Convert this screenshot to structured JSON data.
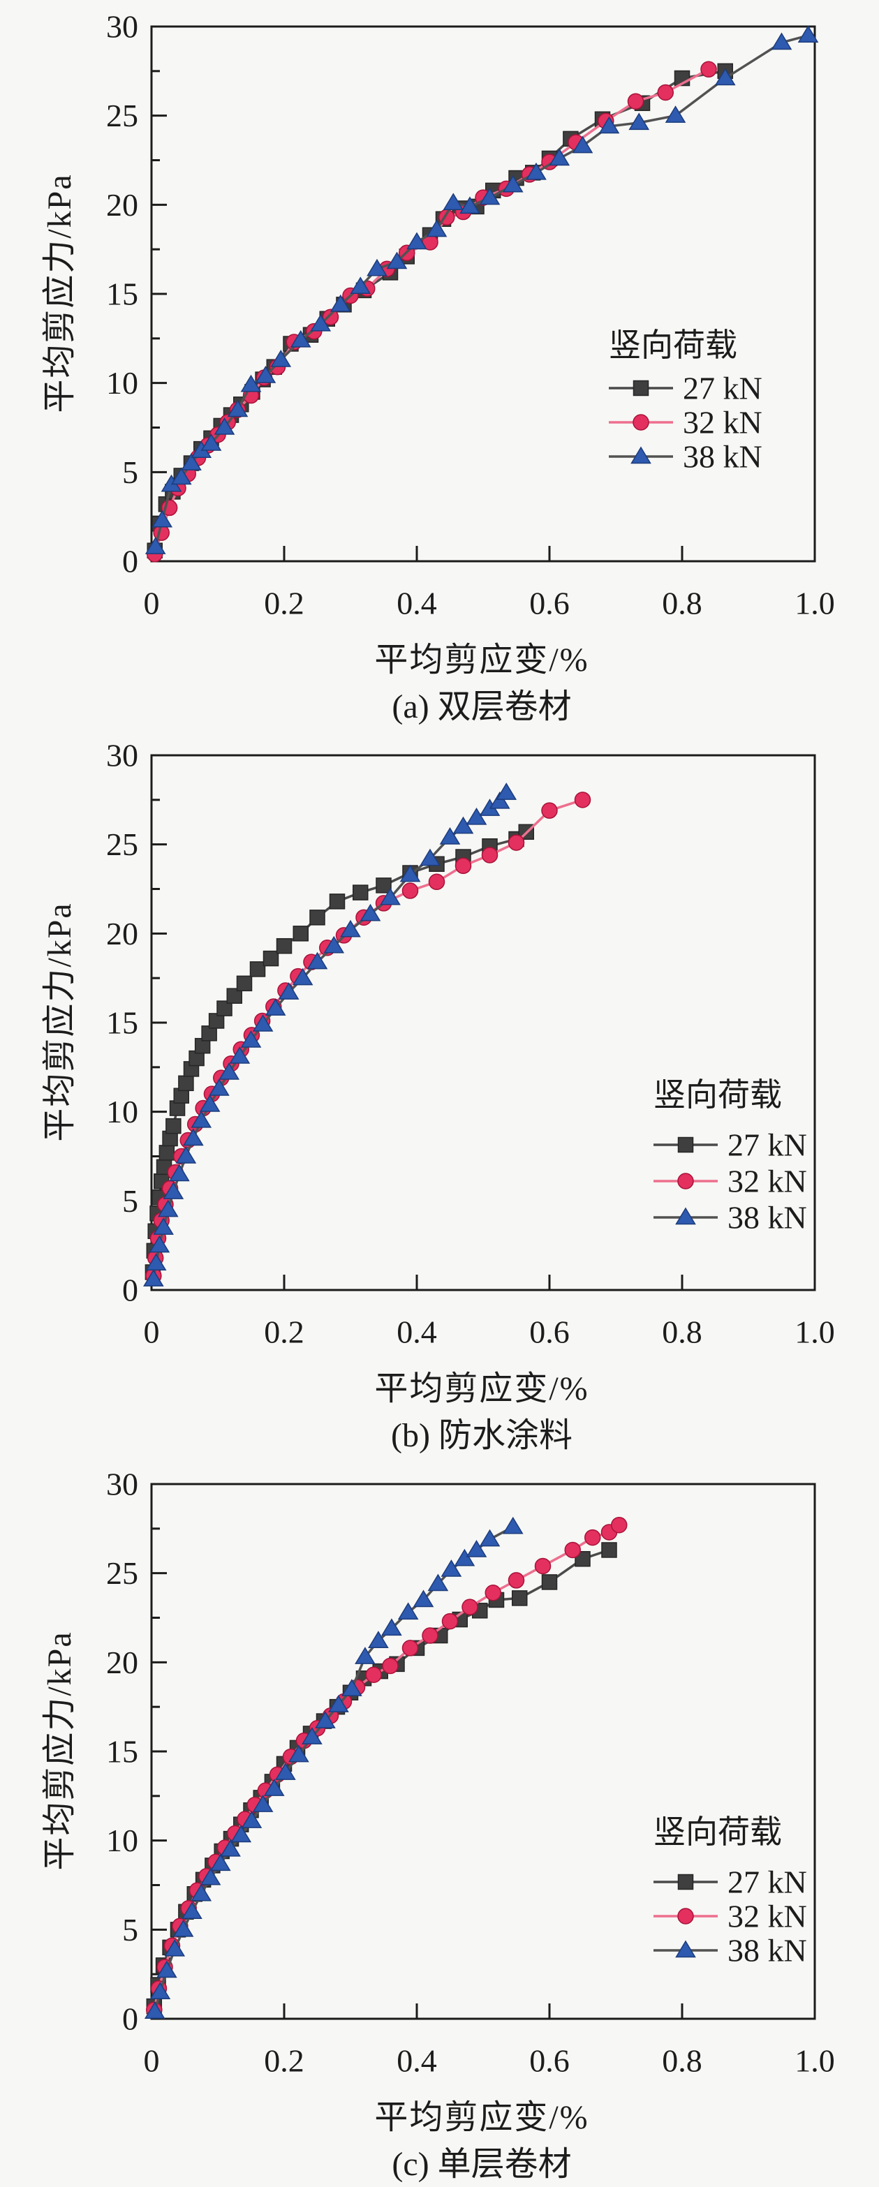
{
  "page": {
    "background": "#f7f7f5",
    "axis_color": "#1c1c1c",
    "text_color": "#1c1c1c"
  },
  "chart_data": [
    {
      "id": "a",
      "type": "line",
      "caption": "(a) 双层卷材",
      "xlabel": "平均剪应变/%",
      "ylabel": "平均剪应力/kPa",
      "legend_title": "竖向荷载",
      "legend_position": "inside-right",
      "grid": "off",
      "xlim": [
        0,
        1.0
      ],
      "ylim": [
        0,
        30
      ],
      "x_tick_labels": [
        "0",
        "0.2",
        "0.4",
        "0.6",
        "0.8",
        "1.0"
      ],
      "y_tick_labels": [
        "0",
        "5",
        "10",
        "15",
        "20",
        "25",
        "30"
      ],
      "series": [
        {
          "name": "27 kN",
          "marker": "square",
          "line_color": "#4a4a4a",
          "marker_color": "#3f3f3f",
          "marker_edge": "#262626",
          "x": [
            0.005,
            0.012,
            0.022,
            0.032,
            0.045,
            0.06,
            0.075,
            0.09,
            0.105,
            0.12,
            0.135,
            0.152,
            0.168,
            0.185,
            0.21,
            0.24,
            0.265,
            0.29,
            0.32,
            0.36,
            0.385,
            0.42,
            0.44,
            0.465,
            0.49,
            0.515,
            0.55,
            0.575,
            0.6,
            0.632,
            0.68,
            0.74,
            0.8,
            0.865
          ],
          "y": [
            0.6,
            2.1,
            3.2,
            3.9,
            4.8,
            5.5,
            6.3,
            6.9,
            7.6,
            8.2,
            8.8,
            9.5,
            10.2,
            10.9,
            12.2,
            12.7,
            13.6,
            14.4,
            15.2,
            16.2,
            17.1,
            18.3,
            19.2,
            19.8,
            19.9,
            20.8,
            21.5,
            21.8,
            22.6,
            23.7,
            24.8,
            25.7,
            27.1,
            27.5
          ]
        },
        {
          "name": "32 kN",
          "marker": "circle",
          "line_color": "#ed6f8e",
          "marker_color": "#e4305f",
          "marker_edge": "#a81238",
          "x": [
            0.005,
            0.015,
            0.027,
            0.04,
            0.055,
            0.07,
            0.085,
            0.1,
            0.115,
            0.13,
            0.15,
            0.17,
            0.19,
            0.215,
            0.245,
            0.27,
            0.3,
            0.325,
            0.355,
            0.385,
            0.42,
            0.445,
            0.47,
            0.5,
            0.535,
            0.57,
            0.6,
            0.64,
            0.685,
            0.73,
            0.775,
            0.84
          ],
          "y": [
            0.4,
            1.6,
            3.0,
            4.1,
            4.9,
            5.8,
            6.5,
            7.1,
            7.8,
            8.5,
            9.3,
            10.3,
            10.9,
            12.3,
            12.9,
            13.7,
            14.9,
            15.3,
            16.4,
            17.3,
            17.9,
            19.3,
            19.6,
            20.4,
            20.9,
            21.7,
            22.4,
            23.5,
            24.7,
            25.8,
            26.3,
            27.6
          ]
        },
        {
          "name": "38 kN",
          "marker": "triangle",
          "line_color": "#525252",
          "marker_color": "#2e5ab0",
          "marker_edge": "#1c3c7c",
          "x": [
            0.006,
            0.016,
            0.03,
            0.045,
            0.06,
            0.075,
            0.09,
            0.11,
            0.13,
            0.15,
            0.172,
            0.195,
            0.225,
            0.255,
            0.285,
            0.315,
            0.34,
            0.37,
            0.4,
            0.43,
            0.455,
            0.48,
            0.51,
            0.545,
            0.58,
            0.615,
            0.65,
            0.69,
            0.735,
            0.79,
            0.865,
            0.95,
            0.99
          ],
          "y": [
            0.8,
            2.3,
            4.3,
            4.7,
            5.5,
            6.2,
            6.6,
            7.5,
            8.5,
            9.9,
            10.4,
            11.3,
            12.4,
            13.3,
            14.4,
            15.4,
            16.4,
            16.8,
            17.9,
            18.6,
            20.1,
            19.9,
            20.4,
            21.1,
            21.8,
            22.6,
            23.3,
            24.4,
            24.6,
            25.0,
            27.1,
            29.1,
            29.5
          ]
        }
      ]
    },
    {
      "id": "b",
      "type": "line",
      "caption": "(b) 防水涂料",
      "xlabel": "平均剪应变/%",
      "ylabel": "平均剪应力/kPa",
      "legend_title": "竖向荷载",
      "legend_position": "inside-right",
      "grid": "off",
      "xlim": [
        0,
        1.0
      ],
      "ylim": [
        0,
        30
      ],
      "x_tick_labels": [
        "0",
        "0.2",
        "0.4",
        "0.6",
        "0.8",
        "1.0"
      ],
      "y_tick_labels": [
        "0",
        "5",
        "10",
        "15",
        "20",
        "25",
        "30"
      ],
      "series": [
        {
          "name": "27 kN",
          "marker": "square",
          "line_color": "#4a4a4a",
          "marker_color": "#3f3f3f",
          "marker_edge": "#262626",
          "x": [
            0.002,
            0.004,
            0.006,
            0.009,
            0.012,
            0.015,
            0.019,
            0.023,
            0.028,
            0.033,
            0.039,
            0.045,
            0.052,
            0.06,
            0.068,
            0.077,
            0.087,
            0.098,
            0.11,
            0.125,
            0.14,
            0.16,
            0.18,
            0.2,
            0.225,
            0.25,
            0.28,
            0.315,
            0.35,
            0.39,
            0.43,
            0.47,
            0.51,
            0.55,
            0.565
          ],
          "y": [
            1.0,
            2.2,
            3.3,
            4.3,
            5.2,
            6.1,
            6.9,
            7.7,
            8.5,
            9.2,
            10.2,
            10.9,
            11.6,
            12.4,
            13.0,
            13.7,
            14.4,
            15.1,
            15.8,
            16.5,
            17.2,
            18.0,
            18.6,
            19.3,
            20.0,
            20.9,
            21.8,
            22.3,
            22.7,
            23.4,
            23.9,
            24.3,
            24.9,
            25.3,
            25.7
          ]
        },
        {
          "name": "32 kN",
          "marker": "circle",
          "line_color": "#ed6f8e",
          "marker_color": "#e4305f",
          "marker_edge": "#a81238",
          "x": [
            0.003,
            0.006,
            0.01,
            0.015,
            0.021,
            0.028,
            0.036,
            0.045,
            0.055,
            0.066,
            0.078,
            0.091,
            0.105,
            0.12,
            0.135,
            0.151,
            0.167,
            0.184,
            0.202,
            0.221,
            0.241,
            0.265,
            0.29,
            0.32,
            0.35,
            0.39,
            0.43,
            0.47,
            0.51,
            0.55,
            0.6,
            0.65
          ],
          "y": [
            0.8,
            1.8,
            2.9,
            3.9,
            4.8,
            5.7,
            6.6,
            7.5,
            8.4,
            9.3,
            10.2,
            11.0,
            11.9,
            12.7,
            13.5,
            14.3,
            15.1,
            15.9,
            16.8,
            17.6,
            18.4,
            19.2,
            19.9,
            20.9,
            21.7,
            22.4,
            22.9,
            23.8,
            24.4,
            25.1,
            26.9,
            27.5
          ]
        },
        {
          "name": "38 kN",
          "marker": "triangle",
          "line_color": "#525252",
          "marker_color": "#2e5ab0",
          "marker_edge": "#1c3c7c",
          "x": [
            0.003,
            0.007,
            0.012,
            0.018,
            0.025,
            0.033,
            0.042,
            0.052,
            0.063,
            0.075,
            0.088,
            0.102,
            0.117,
            0.133,
            0.15,
            0.168,
            0.187,
            0.207,
            0.228,
            0.25,
            0.275,
            0.3,
            0.33,
            0.36,
            0.39,
            0.42,
            0.45,
            0.47,
            0.49,
            0.51,
            0.525,
            0.535
          ],
          "y": [
            0.6,
            1.5,
            2.5,
            3.5,
            4.5,
            5.5,
            6.5,
            7.5,
            8.5,
            9.5,
            10.4,
            11.3,
            12.2,
            13.1,
            14.0,
            14.9,
            15.8,
            16.7,
            17.5,
            18.4,
            19.3,
            20.2,
            21.1,
            22.0,
            23.3,
            24.2,
            25.4,
            26.0,
            26.5,
            27.0,
            27.4,
            27.9
          ]
        }
      ]
    },
    {
      "id": "c",
      "type": "line",
      "caption": "(c) 单层卷材",
      "xlabel": "平均剪应变/%",
      "ylabel": "平均剪应力/kPa",
      "legend_title": "竖向荷载",
      "legend_position": "inside-right",
      "grid": "off",
      "xlim": [
        0,
        1.0
      ],
      "ylim": [
        0,
        30
      ],
      "x_tick_labels": [
        "0",
        "0.2",
        "0.4",
        "0.6",
        "0.8",
        "1.0"
      ],
      "y_tick_labels": [
        "0",
        "5",
        "10",
        "15",
        "20",
        "25",
        "30"
      ],
      "series": [
        {
          "name": "27 kN",
          "marker": "square",
          "line_color": "#4a4a4a",
          "marker_color": "#3f3f3f",
          "marker_edge": "#262626",
          "x": [
            0.004,
            0.01,
            0.018,
            0.028,
            0.04,
            0.052,
            0.065,
            0.078,
            0.092,
            0.106,
            0.12,
            0.135,
            0.15,
            0.165,
            0.182,
            0.2,
            0.22,
            0.24,
            0.26,
            0.28,
            0.3,
            0.32,
            0.345,
            0.37,
            0.4,
            0.435,
            0.465,
            0.495,
            0.52,
            0.555,
            0.6,
            0.65,
            0.69
          ],
          "y": [
            0.7,
            1.9,
            3.0,
            4.0,
            5.0,
            6.0,
            7.0,
            7.8,
            8.6,
            9.4,
            10.1,
            10.9,
            11.7,
            12.4,
            13.3,
            14.3,
            15.2,
            16.0,
            16.7,
            17.5,
            18.3,
            19.1,
            19.5,
            19.9,
            20.8,
            21.5,
            22.4,
            22.9,
            23.5,
            23.6,
            24.5,
            25.8,
            26.3
          ]
        },
        {
          "name": "32 kN",
          "marker": "circle",
          "line_color": "#ed6f8e",
          "marker_color": "#e4305f",
          "marker_edge": "#a81238",
          "x": [
            0.004,
            0.011,
            0.02,
            0.031,
            0.043,
            0.056,
            0.069,
            0.083,
            0.097,
            0.111,
            0.126,
            0.141,
            0.156,
            0.172,
            0.19,
            0.21,
            0.23,
            0.25,
            0.27,
            0.29,
            0.31,
            0.335,
            0.36,
            0.39,
            0.42,
            0.45,
            0.48,
            0.515,
            0.55,
            0.59,
            0.635,
            0.665,
            0.69,
            0.705
          ],
          "y": [
            0.5,
            1.7,
            2.9,
            4.1,
            5.2,
            6.2,
            7.2,
            8.0,
            8.8,
            9.6,
            10.4,
            11.2,
            12.0,
            12.8,
            13.7,
            14.7,
            15.6,
            16.3,
            17.0,
            17.8,
            18.6,
            19.3,
            19.8,
            20.8,
            21.5,
            22.3,
            23.1,
            23.9,
            24.6,
            25.4,
            26.3,
            27.0,
            27.3,
            27.7
          ]
        },
        {
          "name": "38 kN",
          "marker": "triangle",
          "line_color": "#525252",
          "marker_color": "#2e5ab0",
          "marker_edge": "#1c3c7c",
          "x": [
            0.005,
            0.013,
            0.023,
            0.035,
            0.048,
            0.061,
            0.075,
            0.089,
            0.104,
            0.119,
            0.135,
            0.151,
            0.168,
            0.185,
            0.202,
            0.222,
            0.242,
            0.262,
            0.282,
            0.302,
            0.322,
            0.342,
            0.362,
            0.387,
            0.41,
            0.432,
            0.452,
            0.472,
            0.49,
            0.51,
            0.545
          ],
          "y": [
            0.4,
            1.5,
            2.7,
            3.9,
            5.0,
            6.0,
            7.0,
            7.9,
            8.7,
            9.5,
            10.3,
            11.1,
            12.0,
            12.9,
            13.8,
            14.8,
            15.8,
            16.7,
            17.6,
            18.5,
            20.3,
            21.2,
            21.9,
            22.8,
            23.5,
            24.4,
            25.2,
            25.8,
            26.3,
            26.9,
            27.6
          ]
        }
      ]
    }
  ]
}
